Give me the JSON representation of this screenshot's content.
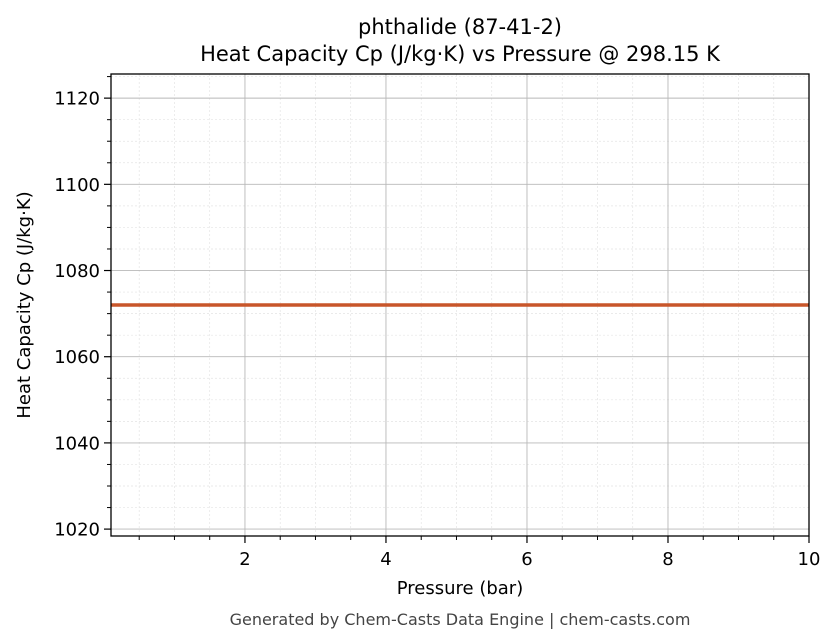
{
  "chart_data": {
    "type": "line",
    "title": "phthalide (87-41-2)",
    "subtitle": "Heat Capacity Cp (J/kg·K) vs Pressure @ 298.15 K",
    "xlabel": "Pressure (bar)",
    "ylabel": "Heat Capacity Cp (J/kg·K)",
    "xlim": [
      0.1,
      10
    ],
    "ylim": [
      1018.4,
      1125.6
    ],
    "x_ticks": [
      2,
      4,
      6,
      8,
      10
    ],
    "x_tick_labels": [
      "2",
      "4",
      "6",
      "8",
      "10"
    ],
    "y_ticks": [
      1020,
      1040,
      1060,
      1080,
      1100,
      1120
    ],
    "y_tick_labels": [
      "1020",
      "1040",
      "1060",
      "1080",
      "1100",
      "1120"
    ],
    "grid": true,
    "minor_grid": true,
    "legend": "none",
    "series": [
      {
        "color": "#c8562a",
        "x": [
          0.1,
          10
        ],
        "y": [
          1072.0,
          1072.0
        ]
      }
    ]
  },
  "footer": "Generated by Chem-Casts Data Engine | chem-casts.com"
}
